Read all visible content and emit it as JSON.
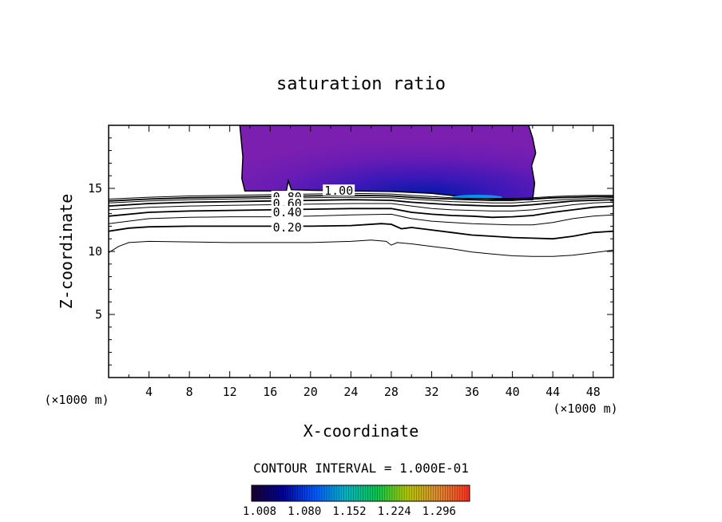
{
  "chart_data": {
    "type": "contour",
    "title": "saturation ratio",
    "xlabel": "X-coordinate",
    "ylabel": "Z-coordinate",
    "x_unit": "(×1000 m)",
    "y_unit": "(×1000 m)",
    "xlim": [
      0,
      50
    ],
    "ylim": [
      0,
      20
    ],
    "xticks": [
      4,
      8,
      12,
      16,
      20,
      24,
      28,
      32,
      36,
      40,
      44,
      48
    ],
    "yticks": [
      5,
      10,
      15
    ],
    "contour_interval_label": "CONTOUR INTERVAL = 1.000E-01",
    "contour_labels": [
      {
        "text": "1.00",
        "x": 22.8,
        "z": 14.8
      },
      {
        "text": "0.80",
        "x": 17.7,
        "z": 14.3
      },
      {
        "text": "0.60",
        "x": 17.7,
        "z": 13.8
      },
      {
        "text": "0.40",
        "x": 17.7,
        "z": 13.1
      },
      {
        "text": "0.20",
        "x": 17.7,
        "z": 11.9
      }
    ],
    "colorbar_ticks": [
      "1.008",
      "1.080",
      "1.152",
      "1.224",
      "1.296"
    ],
    "colormap": [
      "#1a0030",
      "#000099",
      "#0055ff",
      "#00b4c8",
      "#00c850",
      "#b4c800",
      "#e08a30",
      "#ff3020"
    ],
    "supersaturated_fill": "#7a1fb0",
    "max_region_color": "#00aaff",
    "contours": [
      {
        "level": 0.1,
        "points": [
          [
            0,
            9.9
          ],
          [
            1,
            10.4
          ],
          [
            2,
            10.7
          ],
          [
            4,
            10.8
          ],
          [
            8,
            10.75
          ],
          [
            12,
            10.7
          ],
          [
            16,
            10.7
          ],
          [
            20,
            10.7
          ],
          [
            24,
            10.8
          ],
          [
            26,
            10.9
          ],
          [
            27.5,
            10.8
          ],
          [
            28,
            10.5
          ],
          [
            28.6,
            10.7
          ],
          [
            30,
            10.6
          ],
          [
            32,
            10.4
          ],
          [
            34,
            10.2
          ],
          [
            36,
            9.95
          ],
          [
            38,
            9.8
          ],
          [
            40,
            9.65
          ],
          [
            42,
            9.6
          ],
          [
            44,
            9.6
          ],
          [
            46,
            9.7
          ],
          [
            48,
            9.9
          ],
          [
            50,
            10.1
          ]
        ]
      },
      {
        "level": 0.2,
        "points": [
          [
            0,
            11.6
          ],
          [
            2,
            11.85
          ],
          [
            4,
            11.95
          ],
          [
            8,
            12.0
          ],
          [
            12,
            12.0
          ],
          [
            16,
            12.0
          ],
          [
            20,
            12.0
          ],
          [
            24,
            12.05
          ],
          [
            27,
            12.2
          ],
          [
            28,
            12.15
          ],
          [
            29,
            11.8
          ],
          [
            30,
            11.9
          ],
          [
            32,
            11.7
          ],
          [
            34,
            11.5
          ],
          [
            36,
            11.3
          ],
          [
            38,
            11.2
          ],
          [
            40,
            11.1
          ],
          [
            42,
            11.05
          ],
          [
            44,
            11.0
          ],
          [
            46,
            11.2
          ],
          [
            48,
            11.5
          ],
          [
            50,
            11.6
          ]
        ]
      },
      {
        "level": 0.3,
        "points": [
          [
            0,
            12.2
          ],
          [
            4,
            12.6
          ],
          [
            8,
            12.7
          ],
          [
            12,
            12.75
          ],
          [
            16,
            12.75
          ],
          [
            20,
            12.8
          ],
          [
            24,
            12.9
          ],
          [
            28,
            12.95
          ],
          [
            30,
            12.6
          ],
          [
            32,
            12.4
          ],
          [
            34,
            12.3
          ],
          [
            36,
            12.2
          ],
          [
            38,
            12.15
          ],
          [
            40,
            12.1
          ],
          [
            42,
            12.1
          ],
          [
            44,
            12.3
          ],
          [
            46,
            12.6
          ],
          [
            48,
            12.8
          ],
          [
            50,
            12.9
          ]
        ]
      },
      {
        "level": 0.4,
        "points": [
          [
            0,
            12.8
          ],
          [
            4,
            13.1
          ],
          [
            8,
            13.2
          ],
          [
            12,
            13.25
          ],
          [
            16,
            13.3
          ],
          [
            20,
            13.35
          ],
          [
            24,
            13.4
          ],
          [
            28,
            13.4
          ],
          [
            30,
            13.1
          ],
          [
            32,
            12.95
          ],
          [
            34,
            12.85
          ],
          [
            36,
            12.8
          ],
          [
            38,
            12.7
          ],
          [
            40,
            12.75
          ],
          [
            42,
            12.85
          ],
          [
            44,
            13.1
          ],
          [
            46,
            13.3
          ],
          [
            48,
            13.5
          ],
          [
            50,
            13.6
          ]
        ]
      },
      {
        "level": 0.5,
        "points": [
          [
            0,
            13.3
          ],
          [
            4,
            13.5
          ],
          [
            8,
            13.6
          ],
          [
            12,
            13.65
          ],
          [
            16,
            13.7
          ],
          [
            20,
            13.75
          ],
          [
            24,
            13.8
          ],
          [
            28,
            13.8
          ],
          [
            30,
            13.6
          ],
          [
            32,
            13.4
          ],
          [
            34,
            13.3
          ],
          [
            36,
            13.25
          ],
          [
            38,
            13.2
          ],
          [
            40,
            13.2
          ],
          [
            42,
            13.3
          ],
          [
            44,
            13.5
          ],
          [
            46,
            13.7
          ],
          [
            48,
            13.85
          ],
          [
            50,
            13.9
          ]
        ]
      },
      {
        "level": 0.6,
        "points": [
          [
            0,
            13.6
          ],
          [
            4,
            13.8
          ],
          [
            8,
            13.9
          ],
          [
            12,
            13.95
          ],
          [
            16,
            14.0
          ],
          [
            20,
            14.05
          ],
          [
            24,
            14.1
          ],
          [
            28,
            14.05
          ],
          [
            30,
            13.9
          ],
          [
            32,
            13.8
          ],
          [
            34,
            13.7
          ],
          [
            36,
            13.65
          ],
          [
            38,
            13.6
          ],
          [
            40,
            13.6
          ],
          [
            42,
            13.7
          ],
          [
            44,
            13.85
          ],
          [
            46,
            14.0
          ],
          [
            48,
            14.05
          ],
          [
            50,
            14.1
          ]
        ]
      },
      {
        "level": 0.7,
        "points": [
          [
            0,
            13.85
          ],
          [
            4,
            14.0
          ],
          [
            8,
            14.1
          ],
          [
            12,
            14.15
          ],
          [
            16,
            14.2
          ],
          [
            20,
            14.25
          ],
          [
            24,
            14.3
          ],
          [
            28,
            14.25
          ],
          [
            30,
            14.15
          ],
          [
            32,
            14.05
          ],
          [
            34,
            13.95
          ],
          [
            36,
            13.9
          ],
          [
            38,
            13.85
          ],
          [
            40,
            13.85
          ],
          [
            42,
            13.95
          ],
          [
            44,
            14.05
          ],
          [
            46,
            14.15
          ],
          [
            48,
            14.2
          ],
          [
            50,
            14.25
          ]
        ]
      },
      {
        "level": 0.8,
        "points": [
          [
            0,
            14.0
          ],
          [
            4,
            14.15
          ],
          [
            8,
            14.25
          ],
          [
            12,
            14.3
          ],
          [
            16,
            14.35
          ],
          [
            20,
            14.4
          ],
          [
            24,
            14.45
          ],
          [
            28,
            14.4
          ],
          [
            30,
            14.3
          ],
          [
            32,
            14.2
          ],
          [
            34,
            14.15
          ],
          [
            36,
            14.1
          ],
          [
            38,
            14.05
          ],
          [
            40,
            14.05
          ],
          [
            42,
            14.15
          ],
          [
            44,
            14.25
          ],
          [
            46,
            14.3
          ],
          [
            48,
            14.35
          ],
          [
            50,
            14.35
          ]
        ]
      },
      {
        "level": 0.9,
        "points": [
          [
            0,
            14.15
          ],
          [
            4,
            14.3
          ],
          [
            8,
            14.4
          ],
          [
            12,
            14.45
          ],
          [
            16,
            14.5
          ],
          [
            20,
            14.55
          ],
          [
            24,
            14.6
          ],
          [
            28,
            14.55
          ],
          [
            30,
            14.45
          ],
          [
            32,
            14.35
          ],
          [
            34,
            14.25
          ],
          [
            36,
            14.2
          ],
          [
            38,
            14.2
          ],
          [
            40,
            14.2
          ],
          [
            42,
            14.25
          ],
          [
            44,
            14.35
          ],
          [
            46,
            14.42
          ],
          [
            48,
            14.45
          ],
          [
            50,
            14.45
          ]
        ]
      }
    ],
    "saturated_region": {
      "level": 1.0,
      "points": [
        [
          13.0,
          20
        ],
        [
          13.3,
          17.5
        ],
        [
          13.2,
          15.8
        ],
        [
          13.5,
          14.8
        ],
        [
          16,
          14.8
        ],
        [
          17.6,
          14.8
        ],
        [
          17.8,
          15.6
        ],
        [
          18.1,
          14.9
        ],
        [
          20,
          14.85
        ],
        [
          24,
          14.8
        ],
        [
          28,
          14.75
        ],
        [
          32,
          14.6
        ],
        [
          35,
          14.35
        ],
        [
          37,
          14.15
        ],
        [
          40,
          14.1
        ],
        [
          42,
          14.1
        ],
        [
          42.2,
          15.4
        ],
        [
          41.9,
          16.8
        ],
        [
          42.3,
          17.8
        ],
        [
          42.0,
          19.0
        ],
        [
          41.6,
          20
        ]
      ]
    }
  }
}
